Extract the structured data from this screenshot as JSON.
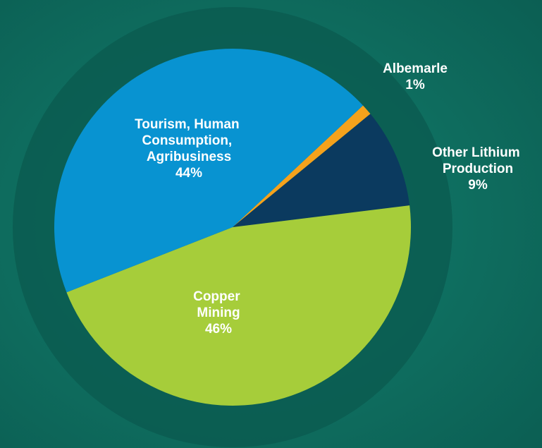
{
  "chart_data": {
    "type": "pie",
    "categories": [
      "Albemarle",
      "Other Lithium Production",
      "Copper Mining",
      "Tourism, Human Consumption, Agribusiness"
    ],
    "values": [
      1,
      9,
      46,
      44
    ],
    "value_labels": [
      "1%",
      "9%",
      "46%",
      "44%"
    ],
    "colors": [
      "#f5a21c",
      "#0b3a5f",
      "#a6cd3a",
      "#0893d1"
    ]
  }
}
